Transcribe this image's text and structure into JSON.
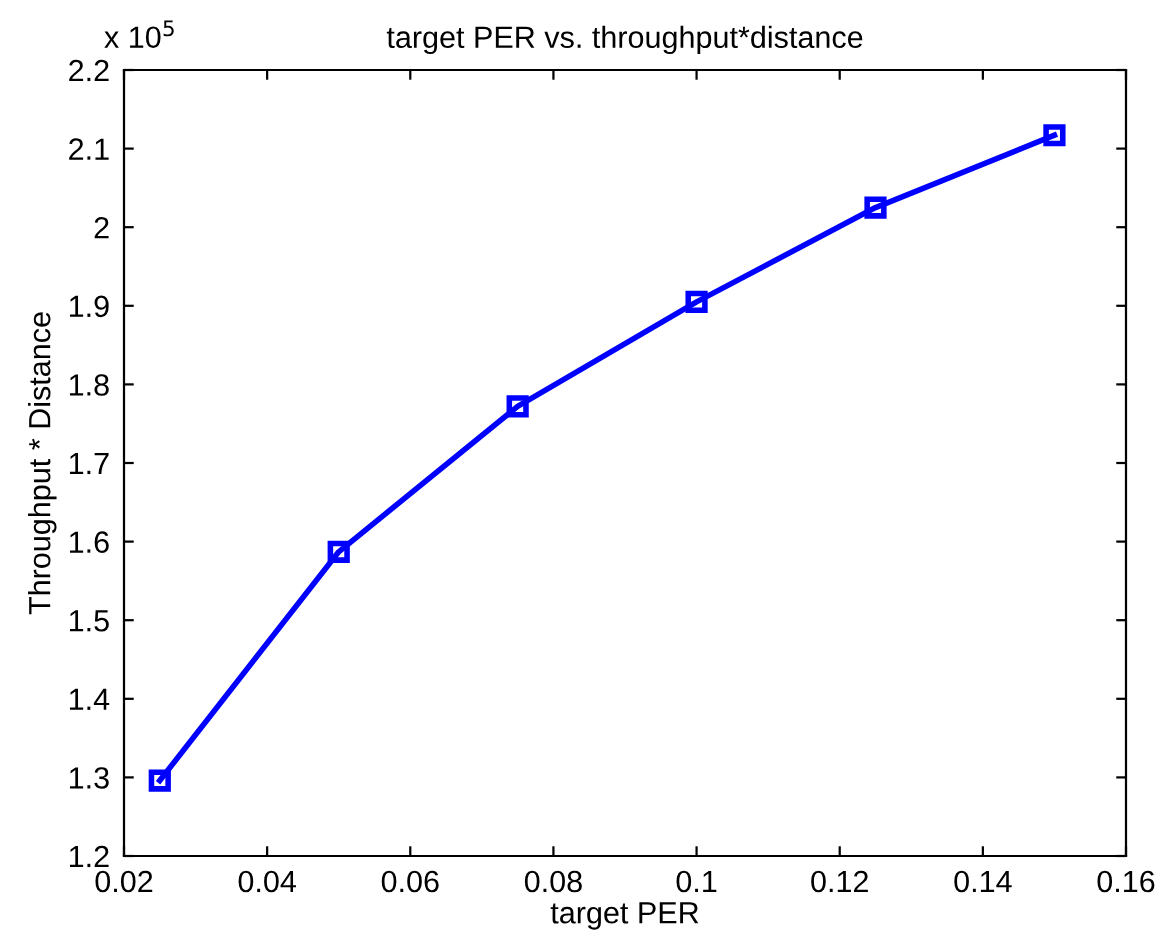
{
  "chart_data": {
    "type": "line",
    "title": "target PER vs. throughput*distance",
    "xlabel": "target PER",
    "ylabel": "Throughput * Distance",
    "annotations": [
      "x 10$^{5}$"
    ],
    "x": [
      0.025,
      0.05,
      0.075,
      0.1,
      0.125,
      0.15
    ],
    "series": [
      {
        "color": "#0000ff",
        "values": [
          1.296,
          1.587,
          1.772,
          1.905,
          2.025,
          2.117
        ]
      }
    ],
    "xlim": [
      0.02,
      0.16
    ],
    "xticks": [
      0.02,
      0.04,
      0.06,
      0.08,
      0.1,
      0.12,
      0.14,
      0.16
    ],
    "ylim": [
      1.2,
      2.2
    ],
    "yticks": [
      1.2,
      1.3,
      1.4,
      1.5,
      1.6,
      1.7,
      1.8,
      1.9,
      2,
      2.1,
      2.2
    ],
    "grid": false,
    "marker": "square",
    "line_style": "solid"
  }
}
